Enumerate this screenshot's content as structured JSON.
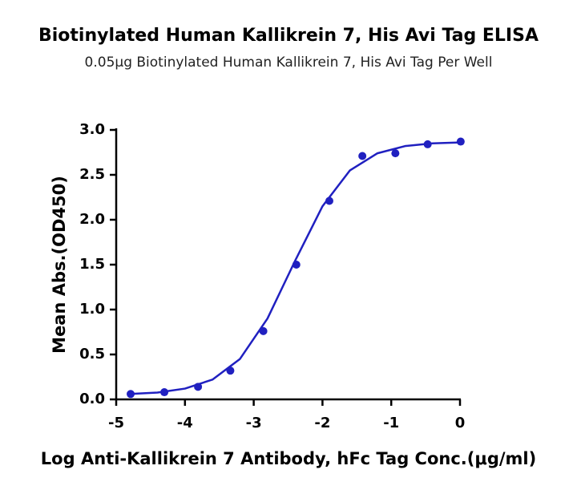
{
  "chart_data": {
    "type": "scatter",
    "title": "Biotinylated Human Kallikrein 7, His Avi Tag ELISA",
    "subtitle": "0.05μg Biotinylated Human Kallikrein 7, His Avi Tag Per Well",
    "x_label": "Log Anti-Kallikrein 7 Antibody, hFc Tag Conc.(μg/ml)",
    "y_label": "Mean Abs.(OD450)",
    "xlim": [
      -5,
      0
    ],
    "xticks": [
      -5,
      -4,
      -3,
      -2,
      -1,
      0
    ],
    "ylim": [
      0,
      3
    ],
    "yticks": [
      {
        "value": 0,
        "label": "0.0"
      },
      0.5,
      {
        "value": 1,
        "label": "1.0"
      },
      1.5,
      {
        "value": 2,
        "label": "2.0"
      },
      2.5,
      {
        "value": 3,
        "label": "3.0"
      }
    ],
    "series": [
      {
        "type": "scatter",
        "color": "#2020c0",
        "x": [
          -4.79,
          -4.3,
          -3.81,
          -3.34,
          -2.86,
          -2.38,
          -1.9,
          -1.42,
          -0.94,
          -0.47,
          0.01
        ],
        "values": [
          0.06,
          0.08,
          0.14,
          0.32,
          0.76,
          1.5,
          2.21,
          2.71,
          2.74,
          2.84,
          2.87
        ]
      },
      {
        "type": "line",
        "color": "#2020c0",
        "x": [
          -4.8,
          -4.4,
          -4.0,
          -3.6,
          -3.2,
          -2.8,
          -2.4,
          -2.0,
          -1.6,
          -1.2,
          -0.8,
          -0.4,
          0
        ],
        "values": [
          0.06,
          0.076,
          0.12,
          0.22,
          0.45,
          0.9,
          1.54,
          2.15,
          2.55,
          2.74,
          2.82,
          2.85,
          2.86
        ]
      }
    ]
  }
}
